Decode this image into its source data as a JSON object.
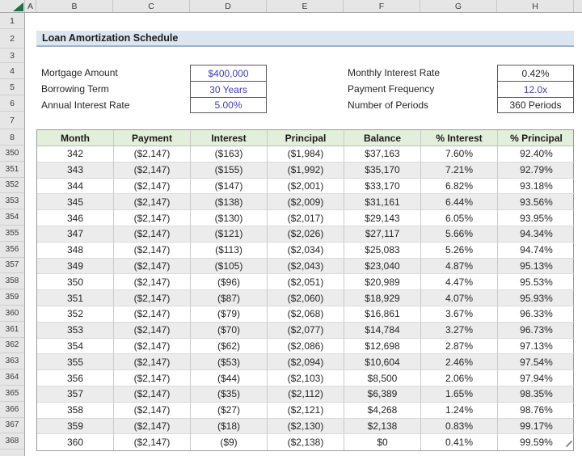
{
  "column_headers": [
    "A",
    "B",
    "C",
    "D",
    "E",
    "F",
    "G",
    "H"
  ],
  "top_row_numbers": [
    "1",
    "2",
    "3",
    "4",
    "5",
    "6",
    "7",
    "8"
  ],
  "title": "Loan Amortization Schedule",
  "inputs_left": [
    {
      "row": "4",
      "label": "Mortgage Amount",
      "value": "$400,000",
      "value_color": "blue"
    },
    {
      "row": "5",
      "label": "Borrowing Term",
      "value": "30 Years",
      "value_color": "blue"
    },
    {
      "row": "6",
      "label": "Annual Interest Rate",
      "value": "5.00%",
      "value_color": "blue"
    }
  ],
  "inputs_right": [
    {
      "row": "4",
      "label": "Monthly Interest Rate",
      "value": "0.42%",
      "value_color": "black"
    },
    {
      "row": "5",
      "label": "Payment Frequency",
      "value": "12.0x",
      "value_color": "blue"
    },
    {
      "row": "6",
      "label": "Number of Periods",
      "value": "360 Periods",
      "value_color": "black"
    }
  ],
  "table": {
    "headers": [
      "Month",
      "Payment",
      "Interest",
      "Principal",
      "Balance",
      "% Interest",
      "% Principal"
    ],
    "rows": [
      {
        "sheet_row": "350",
        "cells": [
          "342",
          "($2,147)",
          "($163)",
          "($1,984)",
          "$37,163",
          "7.60%",
          "92.40%"
        ]
      },
      {
        "sheet_row": "351",
        "cells": [
          "343",
          "($2,147)",
          "($155)",
          "($1,992)",
          "$35,170",
          "7.21%",
          "92.79%"
        ]
      },
      {
        "sheet_row": "352",
        "cells": [
          "344",
          "($2,147)",
          "($147)",
          "($2,001)",
          "$33,170",
          "6.82%",
          "93.18%"
        ]
      },
      {
        "sheet_row": "353",
        "cells": [
          "345",
          "($2,147)",
          "($138)",
          "($2,009)",
          "$31,161",
          "6.44%",
          "93.56%"
        ]
      },
      {
        "sheet_row": "354",
        "cells": [
          "346",
          "($2,147)",
          "($130)",
          "($2,017)",
          "$29,143",
          "6.05%",
          "93.95%"
        ]
      },
      {
        "sheet_row": "355",
        "cells": [
          "347",
          "($2,147)",
          "($121)",
          "($2,026)",
          "$27,117",
          "5.66%",
          "94.34%"
        ]
      },
      {
        "sheet_row": "356",
        "cells": [
          "348",
          "($2,147)",
          "($113)",
          "($2,034)",
          "$25,083",
          "5.26%",
          "94.74%"
        ]
      },
      {
        "sheet_row": "357",
        "cells": [
          "349",
          "($2,147)",
          "($105)",
          "($2,043)",
          "$23,040",
          "4.87%",
          "95.13%"
        ]
      },
      {
        "sheet_row": "358",
        "cells": [
          "350",
          "($2,147)",
          "($96)",
          "($2,051)",
          "$20,989",
          "4.47%",
          "95.53%"
        ]
      },
      {
        "sheet_row": "359",
        "cells": [
          "351",
          "($2,147)",
          "($87)",
          "($2,060)",
          "$18,929",
          "4.07%",
          "95.93%"
        ]
      },
      {
        "sheet_row": "360",
        "cells": [
          "352",
          "($2,147)",
          "($79)",
          "($2,068)",
          "$16,861",
          "3.67%",
          "96.33%"
        ]
      },
      {
        "sheet_row": "361",
        "cells": [
          "353",
          "($2,147)",
          "($70)",
          "($2,077)",
          "$14,784",
          "3.27%",
          "96.73%"
        ]
      },
      {
        "sheet_row": "362",
        "cells": [
          "354",
          "($2,147)",
          "($62)",
          "($2,086)",
          "$12,698",
          "2.87%",
          "97.13%"
        ]
      },
      {
        "sheet_row": "363",
        "cells": [
          "355",
          "($2,147)",
          "($53)",
          "($2,094)",
          "$10,604",
          "2.46%",
          "97.54%"
        ]
      },
      {
        "sheet_row": "364",
        "cells": [
          "356",
          "($2,147)",
          "($44)",
          "($2,103)",
          "$8,500",
          "2.06%",
          "97.94%"
        ]
      },
      {
        "sheet_row": "365",
        "cells": [
          "357",
          "($2,147)",
          "($35)",
          "($2,112)",
          "$6,389",
          "1.65%",
          "98.35%"
        ]
      },
      {
        "sheet_row": "366",
        "cells": [
          "358",
          "($2,147)",
          "($27)",
          "($2,121)",
          "$4,268",
          "1.24%",
          "98.76%"
        ]
      },
      {
        "sheet_row": "367",
        "cells": [
          "359",
          "($2,147)",
          "($18)",
          "($2,130)",
          "$2,138",
          "0.83%",
          "99.17%"
        ]
      },
      {
        "sheet_row": "368",
        "cells": [
          "360",
          "($2,147)",
          "($9)",
          "($2,138)",
          "$0",
          "0.41%",
          "99.59%"
        ]
      }
    ]
  },
  "colors": {
    "input_blue": "#3F3FBE",
    "title_band": "#DCE6F1",
    "title_border": "#9CB4CE",
    "table_header_green": "#E2EFDA",
    "band_gray": "#ECECEC",
    "header_gray": "#E6E6E6",
    "select_all_green": "#1E7145"
  }
}
